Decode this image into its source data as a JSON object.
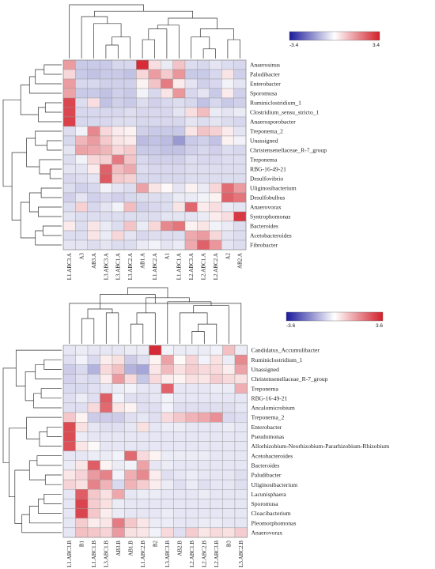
{
  "chart_data": [
    {
      "type": "heatmap",
      "colorscale": {
        "low": "#1a1a9c",
        "mid": "#ffffff",
        "high": "#d21f2a",
        "min": -3.4,
        "max": 3.4
      },
      "colorbar_labels": [
        "-3.4",
        "3.4"
      ],
      "columns": [
        "L1.ABC3.A",
        "A3",
        "AB3.A",
        "L3.ABC3.A",
        "L3.ABC1.A",
        "L3.ABC2.A",
        "AB1.A",
        "L1.ABC2.A",
        "A1",
        "L1.ABC1.A",
        "L2.ABC3.A",
        "L2.ABC1.A",
        "L2.ABC2.A",
        "A2",
        "AB2.A"
      ],
      "rows": [
        "Anaerosinus",
        "Paludibacter",
        "Enterobacter",
        "Sporomusa",
        "Ruminiclostridium_1",
        "Clostridium_sensu_stricto_1",
        "Anaerosporobacter",
        "Treponema_2",
        "Unassigned",
        "Christensenellaceae_R-7_group",
        "Treponema",
        "RBG-16-49-21",
        "Desulfovibrio",
        "Uliginosibacterium",
        "Desulfobulbus",
        "Anaerovorax",
        "Syntrophomonas",
        "Bacteroides",
        "Acetobacteroides",
        "Fibrobacter"
      ],
      "values": [
        [
          1.5,
          -0.8,
          -0.8,
          -0.8,
          -0.6,
          -0.6,
          3.2,
          0.5,
          -0.3,
          0.9,
          -0.5,
          -0.6,
          -0.4,
          -0.5,
          -0.6
        ],
        [
          0.6,
          -0.8,
          -0.9,
          -0.8,
          -0.8,
          -0.9,
          0.6,
          1.5,
          0.8,
          1.6,
          -0.8,
          -0.8,
          -0.6,
          0.4,
          -0.7
        ],
        [
          1.5,
          -0.6,
          -0.6,
          -0.7,
          -0.7,
          -0.7,
          0.2,
          0.9,
          2.0,
          0.3,
          -0.4,
          -0.7,
          -0.6,
          -0.2,
          -0.4
        ],
        [
          1.4,
          -0.8,
          -0.8,
          -0.9,
          -0.7,
          -0.8,
          -0.2,
          -0.6,
          0.4,
          1.6,
          -0.6,
          -0.4,
          -0.8,
          0.3,
          -0.7
        ],
        [
          2.8,
          -0.5,
          0.5,
          -0.9,
          -0.7,
          -0.8,
          -0.5,
          -0.7,
          -0.6,
          -0.5,
          -0.6,
          -0.9,
          -0.6,
          -0.8,
          -0.7
        ],
        [
          2.8,
          -0.6,
          -0.6,
          -0.6,
          -0.6,
          -0.5,
          -0.6,
          -0.6,
          -0.6,
          -0.4,
          0.5,
          1.0,
          -0.3,
          -0.4,
          -0.3
        ],
        [
          2.9,
          -0.6,
          -0.6,
          -0.6,
          -0.5,
          -0.5,
          -0.6,
          -0.6,
          -0.6,
          -0.6,
          -0.4,
          -0.5,
          -0.4,
          -0.5,
          -0.6
        ],
        [
          -0.5,
          -0.2,
          1.8,
          0.6,
          0.3,
          0.2,
          -0.7,
          -0.8,
          -0.8,
          -0.8,
          0.4,
          0.9,
          0.7,
          0.3,
          -0.4
        ],
        [
          -0.6,
          1.1,
          1.5,
          0.8,
          0.4,
          0.3,
          -1.0,
          -0.9,
          -1.0,
          -1.5,
          -0.8,
          -0.7,
          -0.9,
          0.2,
          -0.2
        ],
        [
          -0.4,
          1.4,
          1.3,
          1.1,
          0.6,
          0.8,
          -0.8,
          -0.8,
          -0.9,
          -0.9,
          -0.7,
          -0.6,
          -0.7,
          -0.5,
          -0.6
        ],
        [
          -0.5,
          -0.2,
          0.6,
          0.7,
          2.0,
          0.9,
          -0.6,
          -0.7,
          -0.7,
          -0.7,
          -0.5,
          -0.6,
          -0.6,
          -0.5,
          -0.5
        ],
        [
          -0.4,
          -0.4,
          0.3,
          2.4,
          1.0,
          1.3,
          -0.5,
          -0.6,
          -0.6,
          -0.6,
          -0.5,
          -0.5,
          -0.5,
          -0.5,
          -0.5
        ],
        [
          -0.6,
          -0.5,
          -0.4,
          2.5,
          0.8,
          0.7,
          -0.6,
          -0.6,
          -0.6,
          -0.6,
          -0.5,
          -0.5,
          -0.5,
          -0.5,
          -0.5
        ],
        [
          -0.5,
          -0.7,
          -0.6,
          -0.2,
          -0.4,
          -0.5,
          1.4,
          0.4,
          0.1,
          -0.4,
          0.2,
          -0.3,
          0.6,
          2.2,
          1.5
        ],
        [
          -0.7,
          -0.4,
          -0.7,
          -0.6,
          -0.7,
          -0.6,
          -0.5,
          -0.5,
          -0.5,
          -0.3,
          -0.3,
          -0.2,
          0.2,
          2.4,
          2.1
        ],
        [
          -0.5,
          0.7,
          -0.6,
          -0.4,
          -0.2,
          1.0,
          -0.7,
          -0.6,
          -0.5,
          0.4,
          2.3,
          0.3,
          0.5,
          -0.3,
          -0.4
        ],
        [
          -0.4,
          -0.5,
          -0.5,
          -0.5,
          -0.5,
          -0.5,
          -0.5,
          -0.5,
          -0.4,
          -0.4,
          -0.4,
          -0.3,
          0.3,
          0.5,
          3.0
        ],
        [
          0.3,
          -0.5,
          0.4,
          -0.3,
          -0.5,
          0.9,
          -0.3,
          0.6,
          1.8,
          2.1,
          0.2,
          0.4,
          -0.2,
          -0.3,
          -0.5
        ],
        [
          -0.5,
          -0.5,
          0.4,
          -0.3,
          0.6,
          -0.4,
          -0.6,
          -0.5,
          -0.5,
          -0.5,
          1.3,
          1.5,
          0.6,
          -0.4,
          -0.5
        ],
        [
          -0.4,
          -0.4,
          -0.5,
          -0.4,
          -0.5,
          -0.5,
          -0.3,
          -0.2,
          -0.4,
          -0.3,
          1.3,
          2.4,
          1.6,
          -0.4,
          -0.5
        ]
      ]
    },
    {
      "type": "heatmap",
      "colorscale": {
        "low": "#1a1a9c",
        "mid": "#ffffff",
        "high": "#d21f2a",
        "min": -3.6,
        "max": 3.6
      },
      "colorbar_labels": [
        "-3.6",
        "3.6"
      ],
      "columns": [
        "L1.ABC3.B",
        "B1",
        "L1.ABC1.B",
        "L3.ABC1.B",
        "AB3.B",
        "AB1.B",
        "L1.ABC2.B",
        "B2",
        "L3.ABC3.B",
        "AB2.B",
        "L2.ABC1.B",
        "L2.ABC2.B",
        "L2.ABC3.B",
        "B3",
        "L3.ABC2.B"
      ],
      "rows": [
        "Candidatus_Accumulibacter",
        "Ruminiclostridium_1",
        "Unassigned",
        "Christensenellaceae_R-7_group",
        "Treponema",
        "RBG-16-49-21",
        "Ancalomicrobium",
        "Treponema_2",
        "Enterobacter",
        "Pseudomonas",
        "Allorhizobium-Neorhizobium-Pararhizobium-Rhizobium",
        "Acetobacteroides",
        "Bacteroides",
        "Paludibacter",
        "Uliginosibacterium",
        "Lacunisphaera",
        "Sporomusa",
        "Cloacibacterium",
        "Pleomorphomonas",
        "Anaerovorax"
      ],
      "values": [
        [
          -0.4,
          -0.3,
          -0.4,
          -0.4,
          -0.4,
          -0.3,
          -0.3,
          3.4,
          -0.2,
          -0.3,
          -0.3,
          -0.3,
          -0.2,
          1.0,
          -0.3
        ],
        [
          -0.5,
          -0.2,
          -0.6,
          0.3,
          0.5,
          -0.8,
          -0.5,
          0.2,
          1.5,
          0.1,
          0.7,
          -0.2,
          0.5,
          -0.3,
          1.9
        ],
        [
          -0.8,
          -0.6,
          -1.2,
          0.6,
          1.0,
          -1.2,
          -1.4,
          0.4,
          1.1,
          0.5,
          0.8,
          0.6,
          0.6,
          0.3,
          1.5
        ],
        [
          -0.7,
          -0.5,
          -0.6,
          0.3,
          1.6,
          0.6,
          -0.9,
          0.6,
          0.3,
          0.2,
          0.5,
          0.4,
          0.8,
          0.6,
          0.5
        ],
        [
          -0.6,
          -0.6,
          -0.5,
          -0.4,
          -0.3,
          -0.2,
          -0.4,
          -0.4,
          2.5,
          -0.4,
          -0.4,
          -0.4,
          -0.3,
          -0.3,
          1.3
        ],
        [
          -0.5,
          -0.3,
          -0.5,
          2.6,
          -0.2,
          -0.5,
          -0.5,
          -0.4,
          -0.2,
          -0.4,
          -0.4,
          -0.4,
          -0.4,
          -0.4,
          -0.4
        ],
        [
          -0.5,
          -0.5,
          0.6,
          2.4,
          0.4,
          0.2,
          -0.5,
          -0.5,
          -0.2,
          -0.5,
          -0.5,
          -0.5,
          -0.5,
          -0.5,
          -0.4
        ],
        [
          0.9,
          0.2,
          -0.8,
          -0.8,
          -0.8,
          -0.5,
          -0.4,
          -0.5,
          0.6,
          0.9,
          1.2,
          1.4,
          1.8,
          -0.6,
          -0.5
        ],
        [
          2.9,
          0.5,
          -0.4,
          -0.5,
          -0.5,
          -0.4,
          0.5,
          -0.4,
          -0.3,
          -0.3,
          -0.4,
          -0.4,
          -0.4,
          -0.3,
          -0.4
        ],
        [
          2.9,
          -0.3,
          -0.4,
          -0.4,
          -0.4,
          -0.4,
          -0.4,
          -0.4,
          -0.4,
          -0.4,
          -0.4,
          -0.4,
          -0.4,
          -0.4,
          -0.4
        ],
        [
          2.8,
          0.4,
          0.1,
          -0.4,
          -0.4,
          -0.4,
          -0.4,
          -0.4,
          -0.4,
          -0.4,
          -0.4,
          -0.4,
          -0.4,
          -0.4,
          -0.4
        ],
        [
          -0.4,
          -0.4,
          -0.3,
          -0.3,
          -0.2,
          2.4,
          0.6,
          0.2,
          -0.3,
          -0.3,
          -0.3,
          -0.3,
          -0.4,
          -0.4,
          -0.4
        ],
        [
          -0.3,
          0.4,
          2.6,
          0.2,
          -0.3,
          -0.2,
          1.5,
          -0.4,
          -0.3,
          -0.4,
          -0.4,
          -0.4,
          -0.4,
          -0.4,
          -0.4
        ],
        [
          0.4,
          0.7,
          1.6,
          2.0,
          -0.2,
          1.3,
          1.9,
          0.3,
          -0.5,
          -0.4,
          -0.3,
          -0.4,
          -0.4,
          -0.4,
          -0.5
        ],
        [
          0.7,
          0.5,
          2.0,
          1.2,
          -0.6,
          1.2,
          0.8,
          0.3,
          -0.3,
          -0.5,
          -0.3,
          -0.5,
          -0.4,
          -0.4,
          -0.5
        ],
        [
          -0.4,
          2.6,
          0.9,
          0.5,
          1.4,
          -0.4,
          -0.3,
          -0.3,
          -0.4,
          -0.4,
          -0.4,
          -0.3,
          -0.4,
          -0.4,
          -0.4
        ],
        [
          -0.4,
          3.0,
          0.8,
          0.5,
          -0.3,
          -0.4,
          -0.4,
          -0.4,
          -0.4,
          -0.4,
          -0.4,
          -0.4,
          -0.4,
          -0.4,
          -0.4
        ],
        [
          -0.4,
          3.0,
          0.9,
          0.3,
          -0.3,
          -0.4,
          -0.4,
          -0.4,
          -0.3,
          -0.4,
          -0.4,
          -0.4,
          -0.4,
          -0.4,
          -0.4
        ],
        [
          -0.4,
          0.8,
          0.3,
          0.4,
          2.1,
          0.9,
          0.4,
          -0.3,
          -0.3,
          -0.4,
          -0.4,
          -0.3,
          -0.3,
          -0.4,
          -0.4
        ],
        [
          -0.4,
          1.0,
          0.9,
          0.7,
          1.6,
          0.5,
          0.4,
          -0.2,
          0.6,
          -0.5,
          0.8,
          0.4,
          0.6,
          0.5,
          0.8
        ]
      ]
    }
  ]
}
